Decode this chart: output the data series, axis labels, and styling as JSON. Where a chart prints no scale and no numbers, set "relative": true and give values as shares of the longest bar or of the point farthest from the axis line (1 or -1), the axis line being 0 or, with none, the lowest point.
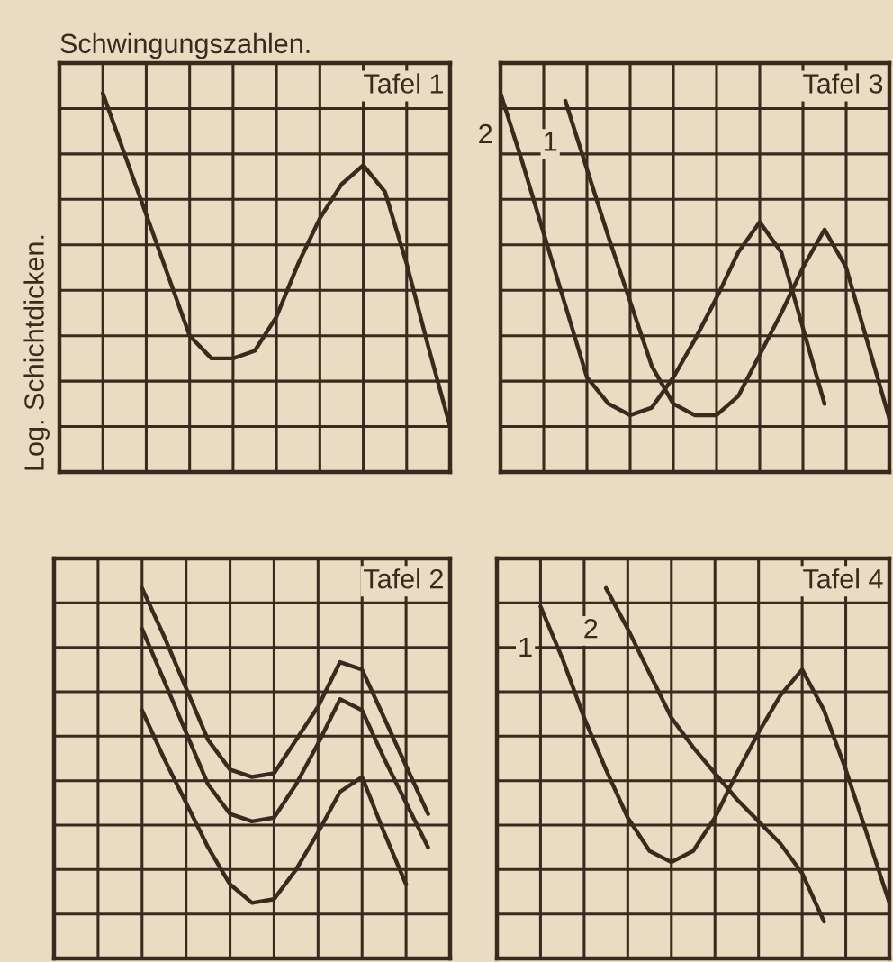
{
  "chart_data": [
    {
      "type": "line",
      "title": "Tafel 1",
      "xlabel": "Schwingungszahlen.",
      "ylabel": "Log. Schichtdicken.",
      "relative": true,
      "grid": true,
      "tick_labels": false,
      "legend": false,
      "categories": [
        null,
        null,
        null,
        null,
        null,
        null,
        null,
        null,
        null,
        null,
        null,
        null,
        null,
        null,
        null,
        null,
        null,
        null,
        null
      ],
      "series": [
        {
          "color": "#3a2a1e",
          "values": [
            null,
            null,
            1.0,
            0.84,
            0.68,
            0.52,
            0.36,
            0.3,
            0.3,
            0.32,
            0.41,
            0.55,
            0.67,
            0.76,
            0.81,
            0.74,
            0.55,
            0.33,
            0.12
          ]
        }
      ]
    },
    {
      "type": "line",
      "title": "Tafel 3",
      "relative": true,
      "grid": true,
      "tick_labels": false,
      "legend": false,
      "categories": [
        null,
        null,
        null,
        null,
        null,
        null,
        null,
        null,
        null,
        null,
        null,
        null,
        null,
        null,
        null,
        null,
        null,
        null,
        null
      ],
      "series": [
        {
          "name": "1",
          "color": "#3a2a1e",
          "values": [
            null,
            null,
            null,
            0.98,
            0.8,
            0.62,
            0.45,
            0.28,
            0.18,
            0.15,
            0.15,
            0.2,
            0.31,
            0.42,
            0.54,
            0.64,
            0.54,
            0.34,
            0.14
          ]
        },
        {
          "name": "2",
          "color": "#3a2a1e",
          "values": [
            1.0,
            0.82,
            0.63,
            0.44,
            0.25,
            0.18,
            0.15,
            0.17,
            0.25,
            0.35,
            0.46,
            0.58,
            0.66,
            0.58,
            0.38,
            0.18,
            null,
            null,
            null
          ]
        }
      ]
    },
    {
      "type": "line",
      "title": "Tafel 2",
      "relative": true,
      "grid": true,
      "tick_labels": false,
      "legend": false,
      "categories": [
        null,
        null,
        null,
        null,
        null,
        null,
        null,
        null,
        null,
        null,
        null,
        null,
        null,
        null,
        null,
        null,
        null,
        null,
        null
      ],
      "series": [
        {
          "color": "#3a2a1e",
          "values": [
            null,
            null,
            null,
            null,
            1.0,
            0.87,
            0.73,
            0.59,
            0.51,
            0.49,
            0.5,
            0.59,
            0.68,
            0.8,
            0.78,
            0.65,
            0.52,
            0.39,
            null
          ]
        },
        {
          "color": "#3a2a1e",
          "values": [
            null,
            null,
            null,
            null,
            0.89,
            0.75,
            0.61,
            0.47,
            0.39,
            0.37,
            0.38,
            0.47,
            0.58,
            0.7,
            0.67,
            0.54,
            0.42,
            0.3,
            null
          ]
        },
        {
          "color": "#3a2a1e",
          "values": [
            null,
            null,
            null,
            null,
            0.67,
            0.54,
            0.42,
            0.3,
            0.2,
            0.15,
            0.16,
            0.24,
            0.34,
            0.45,
            0.49,
            0.34,
            0.2,
            null,
            null
          ]
        }
      ]
    },
    {
      "type": "line",
      "title": "Tafel 4",
      "relative": true,
      "grid": true,
      "tick_labels": false,
      "legend": false,
      "categories": [
        null,
        null,
        null,
        null,
        null,
        null,
        null,
        null,
        null,
        null,
        null,
        null,
        null,
        null,
        null,
        null,
        null,
        null,
        null
      ],
      "series": [
        {
          "name": "1",
          "color": "#3a2a1e",
          "values": [
            null,
            null,
            0.95,
            0.81,
            0.65,
            0.51,
            0.38,
            0.29,
            0.26,
            0.29,
            0.38,
            0.5,
            0.61,
            0.71,
            0.78,
            0.67,
            0.51,
            0.33,
            0.15
          ]
        },
        {
          "name": "2",
          "color": "#3a2a1e",
          "values": [
            null,
            null,
            null,
            null,
            null,
            1.0,
            0.89,
            0.77,
            0.65,
            0.57,
            0.5,
            0.43,
            0.37,
            0.31,
            0.23,
            0.1,
            null,
            null,
            null
          ]
        }
      ]
    }
  ]
}
